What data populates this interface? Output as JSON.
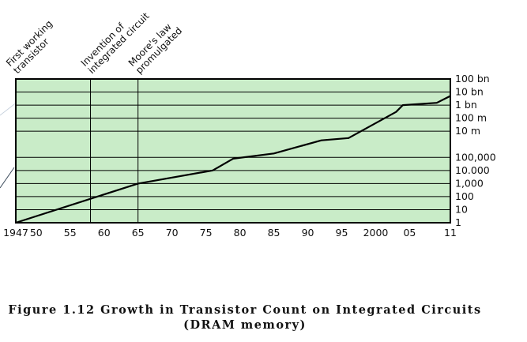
{
  "chart_data": {
    "type": "line",
    "title": "",
    "xlabel": "",
    "ylabel": "",
    "y_scale": "log",
    "xlim": [
      1947,
      2011
    ],
    "ylim": [
      1,
      100000000000
    ],
    "x_ticks": [
      {
        "value": 1947,
        "label": "1947"
      },
      {
        "value": 1950,
        "label": "50"
      },
      {
        "value": 1955,
        "label": "55"
      },
      {
        "value": 1960,
        "label": "60"
      },
      {
        "value": 1965,
        "label": "65"
      },
      {
        "value": 1970,
        "label": "70"
      },
      {
        "value": 1975,
        "label": "75"
      },
      {
        "value": 1980,
        "label": "80"
      },
      {
        "value": 1985,
        "label": "85"
      },
      {
        "value": 1990,
        "label": "90"
      },
      {
        "value": 1995,
        "label": "95"
      },
      {
        "value": 2000,
        "label": "2000"
      },
      {
        "value": 2005,
        "label": "05"
      },
      {
        "value": 2011,
        "label": "11"
      }
    ],
    "y_ticks": [
      {
        "value": 1,
        "label": "1"
      },
      {
        "value": 10,
        "label": "10"
      },
      {
        "value": 100,
        "label": "100"
      },
      {
        "value": 1000,
        "label": "1,000"
      },
      {
        "value": 10000,
        "label": "10.000"
      },
      {
        "value": 100000,
        "label": "100,000"
      },
      {
        "value": 10000000,
        "label": "10 m"
      },
      {
        "value": 100000000,
        "label": "100 m"
      },
      {
        "value": 1000000000,
        "label": "1 bn"
      },
      {
        "value": 10000000000,
        "label": "10 bn"
      },
      {
        "value": 100000000000,
        "label": "100 bn"
      }
    ],
    "grid": true,
    "background": "#c9ecc8",
    "line_color": "#000000",
    "series": [
      {
        "name": "",
        "x": [
          1947,
          1965,
          1976,
          1979,
          1985,
          1992,
          1996,
          2003,
          2004,
          2009,
          2011
        ],
        "y": [
          1,
          1000,
          10000,
          80000,
          200000,
          2000000,
          3000000,
          300000000,
          1000000000,
          1500000000,
          5000000000
        ]
      }
    ],
    "annotations": [
      {
        "x": 1947,
        "lines": [
          "First working",
          "transistor"
        ]
      },
      {
        "x": 1958,
        "lines": [
          "Invention of",
          "integrated circuit"
        ]
      },
      {
        "x": 1965,
        "lines": [
          "Moore's law",
          "promulgated"
        ]
      }
    ]
  },
  "caption": {
    "line1": "Figure 1.12  Growth in Transistor Count on Integrated Circuits",
    "line2": "(DRAM memory)"
  }
}
